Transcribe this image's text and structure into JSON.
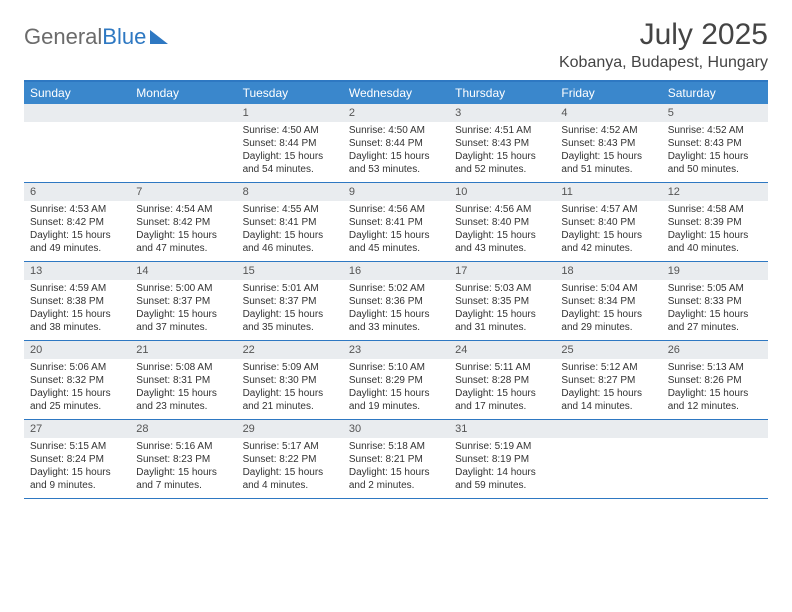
{
  "brand": {
    "part1": "General",
    "part2": "Blue"
  },
  "title": "July 2025",
  "subtitle": "Kobanya, Budapest, Hungary",
  "colors": {
    "header_bg": "#3a87cc",
    "border": "#2e78c2",
    "daynum_bg": "#e9ecef",
    "text": "#333333"
  },
  "dow": [
    "Sunday",
    "Monday",
    "Tuesday",
    "Wednesday",
    "Thursday",
    "Friday",
    "Saturday"
  ],
  "weeks": [
    [
      {
        "n": "",
        "sunrise": "",
        "sunset": "",
        "daylight": ""
      },
      {
        "n": "",
        "sunrise": "",
        "sunset": "",
        "daylight": ""
      },
      {
        "n": "1",
        "sunrise": "Sunrise: 4:50 AM",
        "sunset": "Sunset: 8:44 PM",
        "daylight": "Daylight: 15 hours and 54 minutes."
      },
      {
        "n": "2",
        "sunrise": "Sunrise: 4:50 AM",
        "sunset": "Sunset: 8:44 PM",
        "daylight": "Daylight: 15 hours and 53 minutes."
      },
      {
        "n": "3",
        "sunrise": "Sunrise: 4:51 AM",
        "sunset": "Sunset: 8:43 PM",
        "daylight": "Daylight: 15 hours and 52 minutes."
      },
      {
        "n": "4",
        "sunrise": "Sunrise: 4:52 AM",
        "sunset": "Sunset: 8:43 PM",
        "daylight": "Daylight: 15 hours and 51 minutes."
      },
      {
        "n": "5",
        "sunrise": "Sunrise: 4:52 AM",
        "sunset": "Sunset: 8:43 PM",
        "daylight": "Daylight: 15 hours and 50 minutes."
      }
    ],
    [
      {
        "n": "6",
        "sunrise": "Sunrise: 4:53 AM",
        "sunset": "Sunset: 8:42 PM",
        "daylight": "Daylight: 15 hours and 49 minutes."
      },
      {
        "n": "7",
        "sunrise": "Sunrise: 4:54 AM",
        "sunset": "Sunset: 8:42 PM",
        "daylight": "Daylight: 15 hours and 47 minutes."
      },
      {
        "n": "8",
        "sunrise": "Sunrise: 4:55 AM",
        "sunset": "Sunset: 8:41 PM",
        "daylight": "Daylight: 15 hours and 46 minutes."
      },
      {
        "n": "9",
        "sunrise": "Sunrise: 4:56 AM",
        "sunset": "Sunset: 8:41 PM",
        "daylight": "Daylight: 15 hours and 45 minutes."
      },
      {
        "n": "10",
        "sunrise": "Sunrise: 4:56 AM",
        "sunset": "Sunset: 8:40 PM",
        "daylight": "Daylight: 15 hours and 43 minutes."
      },
      {
        "n": "11",
        "sunrise": "Sunrise: 4:57 AM",
        "sunset": "Sunset: 8:40 PM",
        "daylight": "Daylight: 15 hours and 42 minutes."
      },
      {
        "n": "12",
        "sunrise": "Sunrise: 4:58 AM",
        "sunset": "Sunset: 8:39 PM",
        "daylight": "Daylight: 15 hours and 40 minutes."
      }
    ],
    [
      {
        "n": "13",
        "sunrise": "Sunrise: 4:59 AM",
        "sunset": "Sunset: 8:38 PM",
        "daylight": "Daylight: 15 hours and 38 minutes."
      },
      {
        "n": "14",
        "sunrise": "Sunrise: 5:00 AM",
        "sunset": "Sunset: 8:37 PM",
        "daylight": "Daylight: 15 hours and 37 minutes."
      },
      {
        "n": "15",
        "sunrise": "Sunrise: 5:01 AM",
        "sunset": "Sunset: 8:37 PM",
        "daylight": "Daylight: 15 hours and 35 minutes."
      },
      {
        "n": "16",
        "sunrise": "Sunrise: 5:02 AM",
        "sunset": "Sunset: 8:36 PM",
        "daylight": "Daylight: 15 hours and 33 minutes."
      },
      {
        "n": "17",
        "sunrise": "Sunrise: 5:03 AM",
        "sunset": "Sunset: 8:35 PM",
        "daylight": "Daylight: 15 hours and 31 minutes."
      },
      {
        "n": "18",
        "sunrise": "Sunrise: 5:04 AM",
        "sunset": "Sunset: 8:34 PM",
        "daylight": "Daylight: 15 hours and 29 minutes."
      },
      {
        "n": "19",
        "sunrise": "Sunrise: 5:05 AM",
        "sunset": "Sunset: 8:33 PM",
        "daylight": "Daylight: 15 hours and 27 minutes."
      }
    ],
    [
      {
        "n": "20",
        "sunrise": "Sunrise: 5:06 AM",
        "sunset": "Sunset: 8:32 PM",
        "daylight": "Daylight: 15 hours and 25 minutes."
      },
      {
        "n": "21",
        "sunrise": "Sunrise: 5:08 AM",
        "sunset": "Sunset: 8:31 PM",
        "daylight": "Daylight: 15 hours and 23 minutes."
      },
      {
        "n": "22",
        "sunrise": "Sunrise: 5:09 AM",
        "sunset": "Sunset: 8:30 PM",
        "daylight": "Daylight: 15 hours and 21 minutes."
      },
      {
        "n": "23",
        "sunrise": "Sunrise: 5:10 AM",
        "sunset": "Sunset: 8:29 PM",
        "daylight": "Daylight: 15 hours and 19 minutes."
      },
      {
        "n": "24",
        "sunrise": "Sunrise: 5:11 AM",
        "sunset": "Sunset: 8:28 PM",
        "daylight": "Daylight: 15 hours and 17 minutes."
      },
      {
        "n": "25",
        "sunrise": "Sunrise: 5:12 AM",
        "sunset": "Sunset: 8:27 PM",
        "daylight": "Daylight: 15 hours and 14 minutes."
      },
      {
        "n": "26",
        "sunrise": "Sunrise: 5:13 AM",
        "sunset": "Sunset: 8:26 PM",
        "daylight": "Daylight: 15 hours and 12 minutes."
      }
    ],
    [
      {
        "n": "27",
        "sunrise": "Sunrise: 5:15 AM",
        "sunset": "Sunset: 8:24 PM",
        "daylight": "Daylight: 15 hours and 9 minutes."
      },
      {
        "n": "28",
        "sunrise": "Sunrise: 5:16 AM",
        "sunset": "Sunset: 8:23 PM",
        "daylight": "Daylight: 15 hours and 7 minutes."
      },
      {
        "n": "29",
        "sunrise": "Sunrise: 5:17 AM",
        "sunset": "Sunset: 8:22 PM",
        "daylight": "Daylight: 15 hours and 4 minutes."
      },
      {
        "n": "30",
        "sunrise": "Sunrise: 5:18 AM",
        "sunset": "Sunset: 8:21 PM",
        "daylight": "Daylight: 15 hours and 2 minutes."
      },
      {
        "n": "31",
        "sunrise": "Sunrise: 5:19 AM",
        "sunset": "Sunset: 8:19 PM",
        "daylight": "Daylight: 14 hours and 59 minutes."
      },
      {
        "n": "",
        "sunrise": "",
        "sunset": "",
        "daylight": ""
      },
      {
        "n": "",
        "sunrise": "",
        "sunset": "",
        "daylight": ""
      }
    ]
  ]
}
